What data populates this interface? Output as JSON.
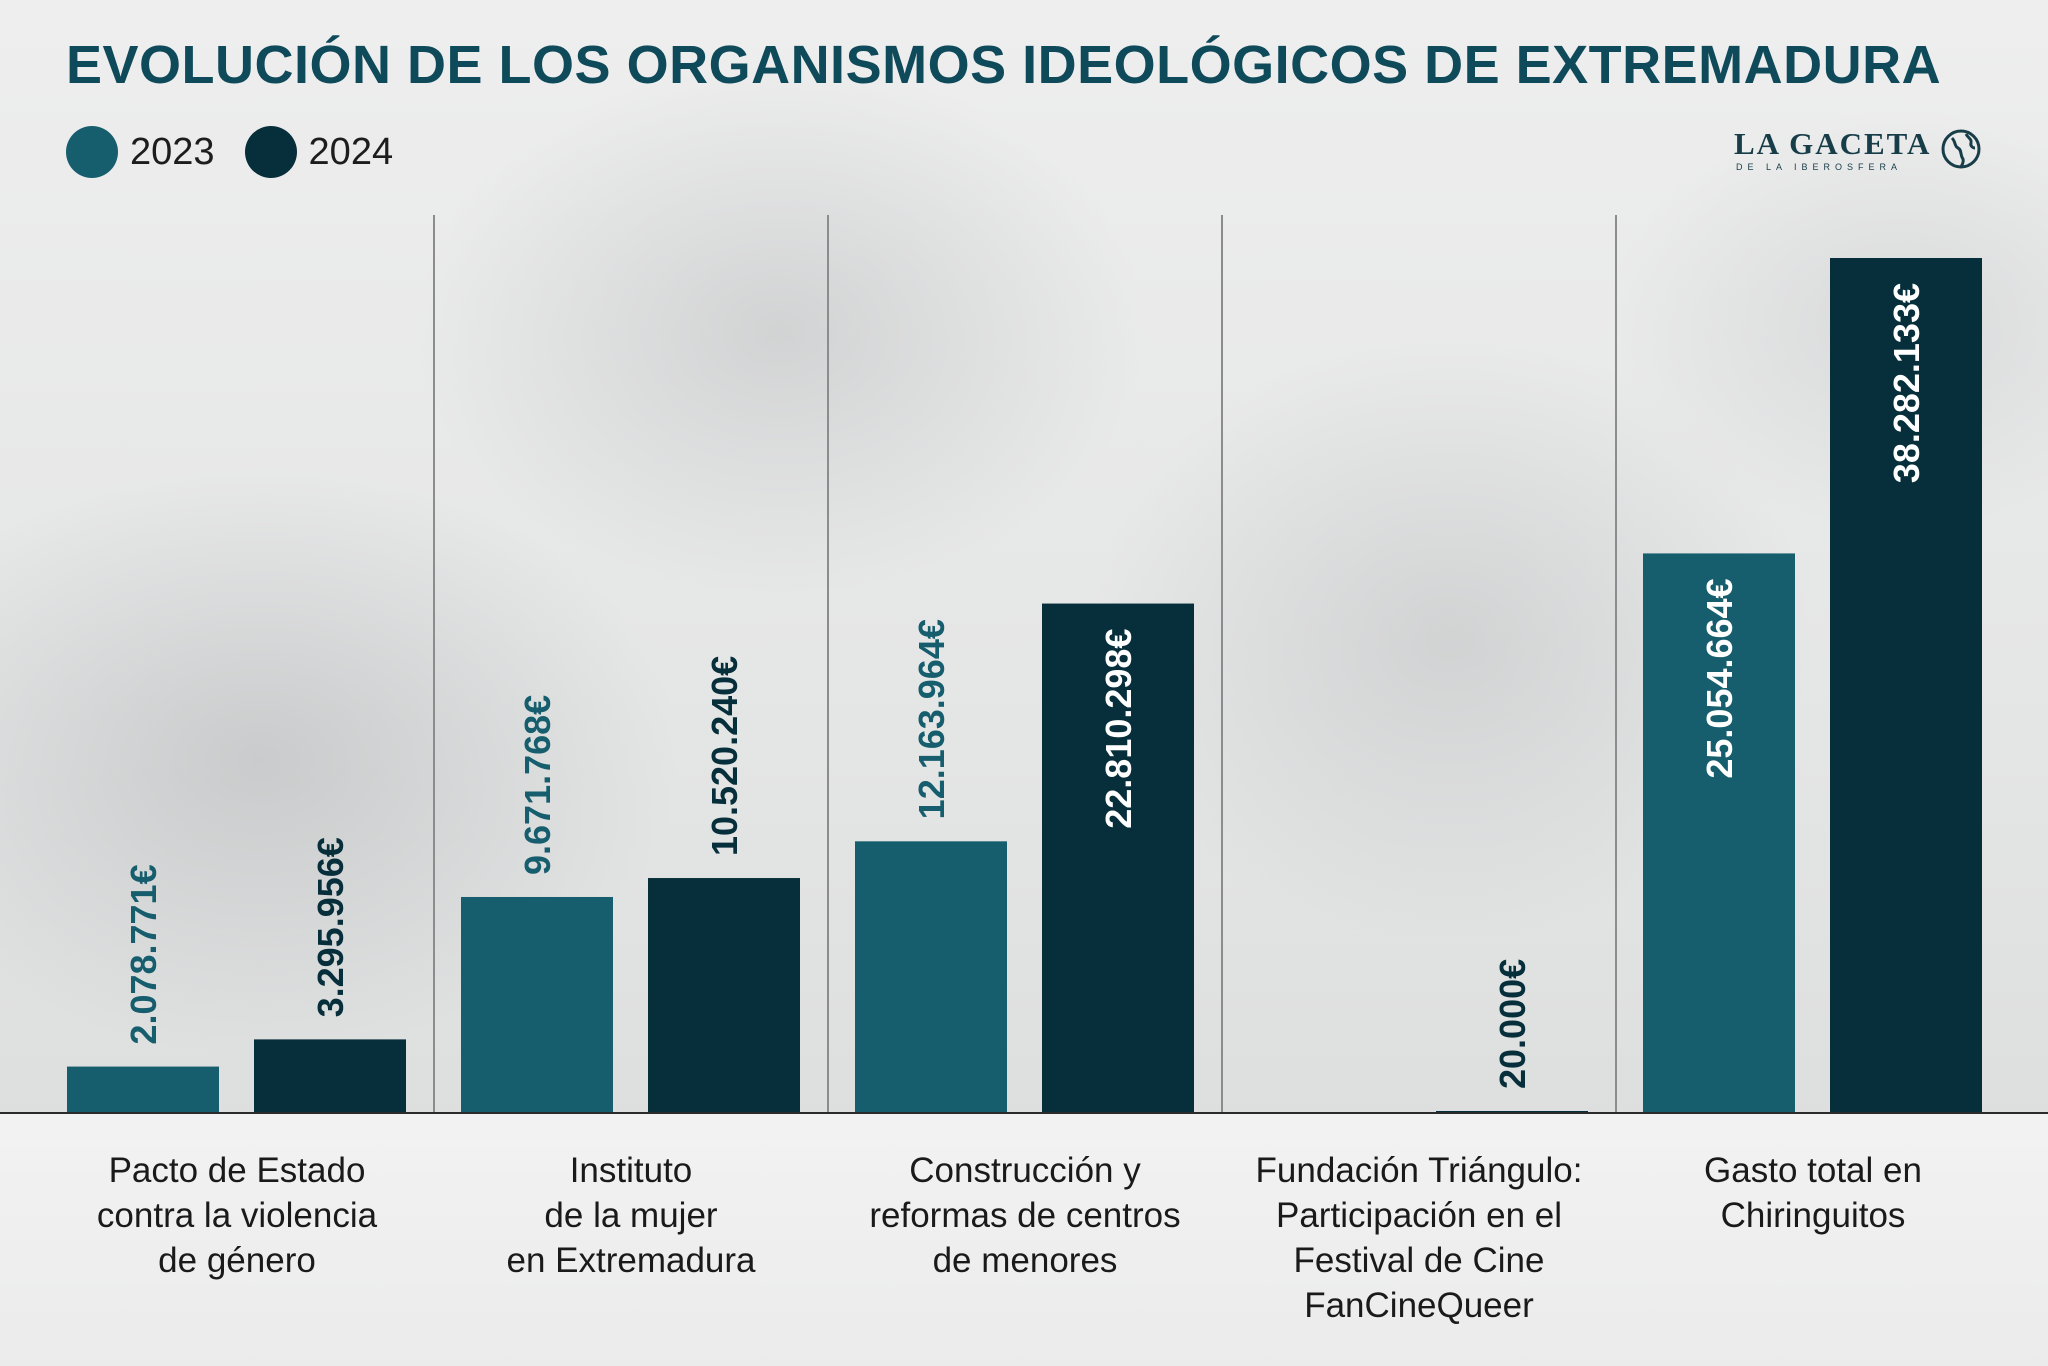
{
  "header": {
    "title_part1": "EVOLUCIÓN DE LOS ",
    "title_part2": "ORGANISMOS IDEOLÓGICOS DE EXTREMADURA"
  },
  "logo": {
    "name": "LA GACETA",
    "tagline": "DE LA IBEROSFERA",
    "icon": "globe-icon"
  },
  "colors": {
    "series_2023": "#165d6d",
    "series_2024": "#062f3b",
    "title": "#0f4a5a"
  },
  "chart_data": {
    "type": "bar",
    "title": "EVOLUCIÓN DE LOS ORGANISMOS IDEOLÓGICOS DE EXTREMADURA",
    "xlabel": "",
    "ylabel": "",
    "ylim": [
      0,
      40000000
    ],
    "grid": false,
    "legend_position": "top-left",
    "categories": [
      "Pacto de Estado\ncontra la violencia\nde género",
      "Instituto\nde la mujer\nen Extremadura",
      "Construcción y\nreformas de centros\nde menores",
      "Fundación Triángulo:\nParticipación en el\nFestival de Cine\nFanCineQueer",
      "Gasto total en\nChiringuitos"
    ],
    "series": [
      {
        "name": "2023",
        "color": "#165d6d",
        "values": [
          2078771,
          9671768,
          12163964,
          null,
          25054664
        ],
        "labels": [
          "2.078.771€",
          "9.671.768€",
          "12.163.964€",
          "",
          "25.054.664€"
        ]
      },
      {
        "name": "2024",
        "color": "#062f3b",
        "values": [
          3295956,
          10520240,
          22810298,
          20000,
          38282133
        ],
        "labels": [
          "3.295.956€",
          "10.520.240€",
          "22.810.298€",
          "20.000€",
          "38.282.133€"
        ]
      }
    ]
  }
}
